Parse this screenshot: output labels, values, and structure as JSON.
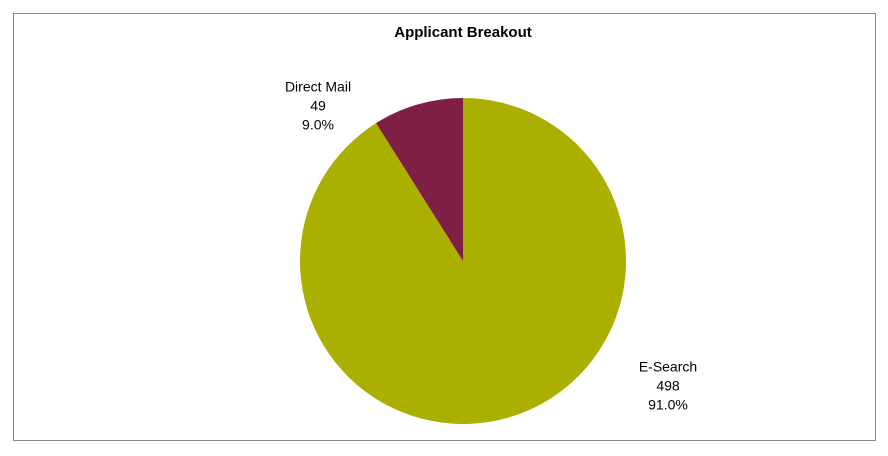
{
  "chart_data": {
    "type": "pie",
    "title": "Applicant Breakout",
    "categories": [
      "E-Search",
      "Direct Mail"
    ],
    "values": [
      498,
      49
    ],
    "percent_labels": [
      "91.0%",
      "9.0%"
    ],
    "colors": [
      "#aaaf00",
      "#7f1f45"
    ]
  }
}
